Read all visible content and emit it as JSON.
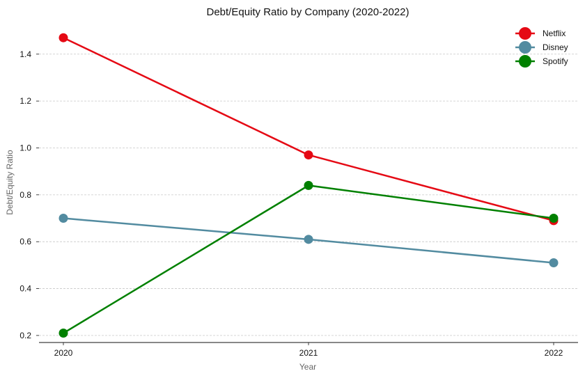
{
  "chart_data": {
    "type": "line",
    "title": "Debt/Equity Ratio by Company (2020-2022)",
    "xlabel": "Year",
    "ylabel": "Debt/Equity Ratio",
    "categories": [
      "2020",
      "2021",
      "2022"
    ],
    "ylim": [
      0.17,
      1.53
    ],
    "yticks": [
      "0.2",
      "0.4",
      "0.6",
      "0.8",
      "1.0",
      "1.2",
      "1.4"
    ],
    "grid": true,
    "legend_position": "top-right",
    "series": [
      {
        "name": "Netflix",
        "color": "#E50914",
        "values": [
          1.47,
          0.97,
          0.69
        ]
      },
      {
        "name": "Disney",
        "color": "#528BA0",
        "values": [
          0.7,
          0.61,
          0.51
        ]
      },
      {
        "name": "Spotify",
        "color": "#008000",
        "values": [
          0.21,
          0.84,
          0.7
        ]
      }
    ]
  }
}
